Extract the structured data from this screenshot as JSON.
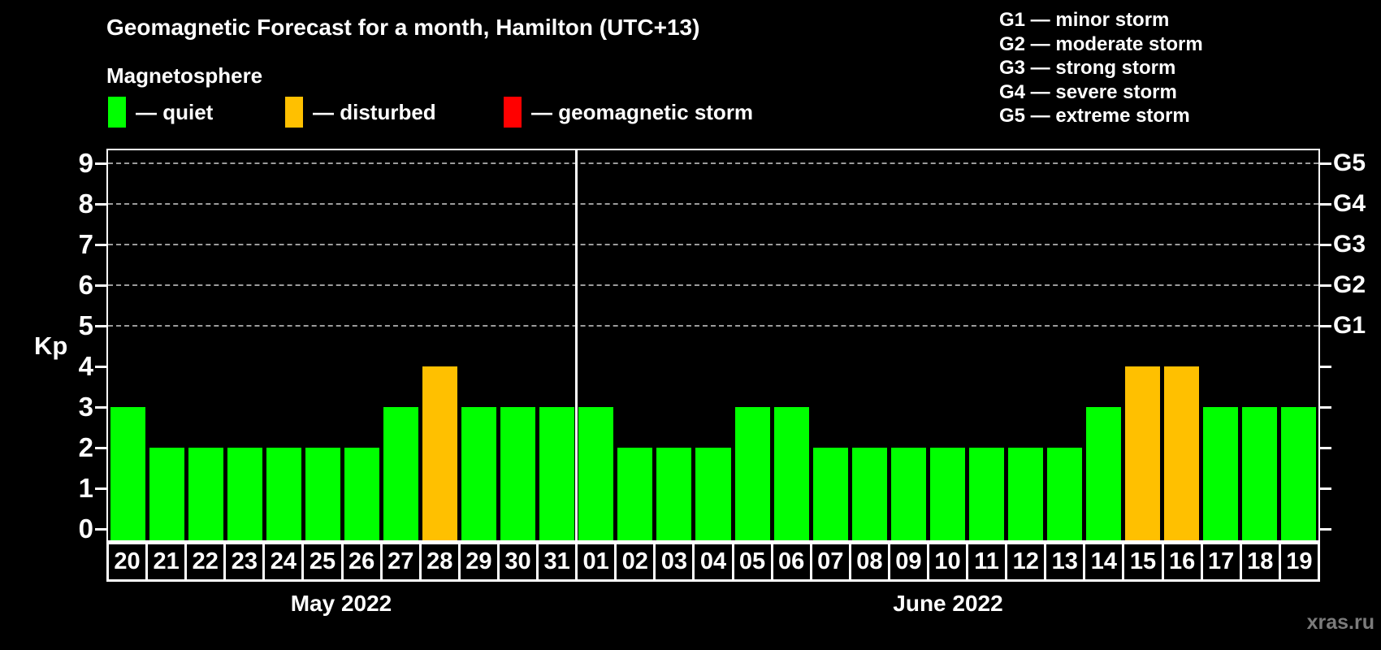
{
  "title": "Geomagnetic Forecast for a month, Hamilton (UTC+13)",
  "subtitle": "Magnetosphere",
  "legend": {
    "items": [
      {
        "name": "quiet",
        "label": "— quiet",
        "color": "#00ff00"
      },
      {
        "name": "disturbed",
        "label": "— disturbed",
        "color": "#ffc000"
      },
      {
        "name": "storm",
        "label": "— geomagnetic storm",
        "color": "#ff0000"
      }
    ]
  },
  "g_legend": [
    "G1 — minor storm",
    "G2 — moderate storm",
    "G3 — strong storm",
    "G4 — severe storm",
    "G5 — extreme storm"
  ],
  "kp_axis_label": "Kp",
  "watermark": "xras.ru",
  "chart_data": {
    "type": "bar",
    "title": "Geomagnetic Forecast for a month, Hamilton (UTC+13)",
    "xlabel": "",
    "ylabel": "Kp",
    "ylim": [
      0,
      9
    ],
    "yticks": [
      0,
      1,
      2,
      3,
      4,
      5,
      6,
      7,
      8,
      9
    ],
    "gridlines_at_kp": [
      5,
      6,
      7,
      8,
      9
    ],
    "grid": "dashed horizontal at Kp 5-9 only",
    "right_axis": [
      {
        "kp": 5,
        "label": "G1"
      },
      {
        "kp": 6,
        "label": "G2"
      },
      {
        "kp": 7,
        "label": "G3"
      },
      {
        "kp": 8,
        "label": "G4"
      },
      {
        "kp": 9,
        "label": "G5"
      }
    ],
    "months": [
      {
        "label": "May 2022",
        "days": 12
      },
      {
        "label": "June 2022",
        "days": 19
      }
    ],
    "categories": [
      "20",
      "21",
      "22",
      "23",
      "24",
      "25",
      "26",
      "27",
      "28",
      "29",
      "30",
      "31",
      "01",
      "02",
      "03",
      "04",
      "05",
      "06",
      "07",
      "08",
      "09",
      "10",
      "11",
      "12",
      "13",
      "14",
      "15",
      "16",
      "17",
      "18",
      "19"
    ],
    "values": [
      3,
      2,
      2,
      2,
      2,
      2,
      2,
      3,
      4,
      3,
      3,
      3,
      3,
      2,
      2,
      2,
      3,
      3,
      2,
      2,
      2,
      2,
      2,
      2,
      2,
      3,
      4,
      4,
      3,
      3,
      3
    ],
    "statuses": [
      "quiet",
      "quiet",
      "quiet",
      "quiet",
      "quiet",
      "quiet",
      "quiet",
      "quiet",
      "disturbed",
      "quiet",
      "quiet",
      "quiet",
      "quiet",
      "quiet",
      "quiet",
      "quiet",
      "quiet",
      "quiet",
      "quiet",
      "quiet",
      "quiet",
      "quiet",
      "quiet",
      "quiet",
      "quiet",
      "quiet",
      "disturbed",
      "disturbed",
      "quiet",
      "quiet",
      "quiet"
    ],
    "status_colors": {
      "quiet": "#00ff00",
      "disturbed": "#ffc000",
      "storm": "#ff0000"
    },
    "legend_position": "top-left",
    "background": "#000000"
  }
}
